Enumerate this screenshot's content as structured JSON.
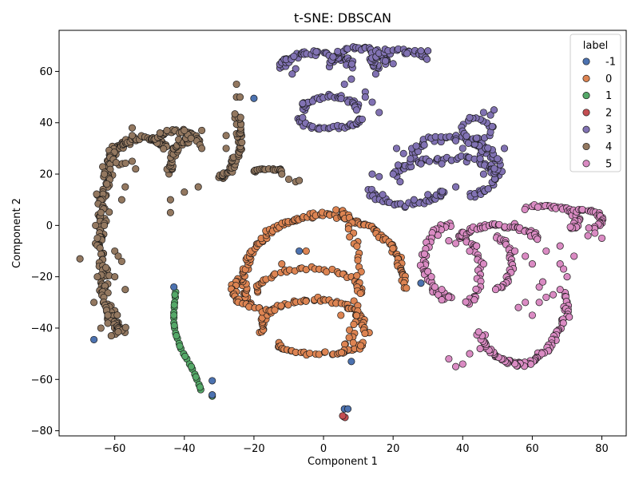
{
  "chart_data": {
    "type": "scatter",
    "title": "t-SNE: DBSCAN",
    "xlabel": "Component 1",
    "ylabel": "Component 2",
    "xlim": [
      -76,
      87
    ],
    "ylim": [
      -82,
      76
    ],
    "xticks": [
      -60,
      -40,
      -20,
      0,
      20,
      40,
      60,
      80
    ],
    "yticks": [
      -80,
      -60,
      -40,
      -20,
      0,
      20,
      40,
      60
    ],
    "grid": false,
    "legend": {
      "title": "label",
      "placement": "top-right"
    },
    "series": [
      {
        "name": "-1",
        "color": "#4c72b0",
        "points": [
          [
            -20,
            49.5
          ],
          [
            -66,
            -44.5
          ],
          [
            -43,
            -24
          ],
          [
            -32,
            -60.5
          ],
          [
            -32,
            -66
          ],
          [
            6,
            -71.5
          ],
          [
            7,
            -71.5
          ],
          [
            8,
            -53
          ],
          [
            -7,
            -10
          ],
          [
            28,
            -22.5
          ]
        ]
      },
      {
        "name": "0",
        "color": "#dd8452",
        "arcs": [
          {
            "cx": 0,
            "cy": -22,
            "rx": 23,
            "ry": 26,
            "from": 200,
            "to": -5,
            "n": 140,
            "jit": 1.5
          },
          {
            "cx": -4,
            "cy": -26,
            "rx": 15,
            "ry": 9,
            "from": 180,
            "to": 0,
            "n": 40,
            "jit": 1.2
          },
          {
            "cx": -3,
            "cy": -40,
            "rx": 15,
            "ry": 11,
            "from": 190,
            "to": -10,
            "n": 60,
            "jit": 1.5
          },
          {
            "cx": -1,
            "cy": -46,
            "rx": 12,
            "ry": 4,
            "from": 180,
            "to": 360,
            "n": 35,
            "jit": 1.2
          },
          {
            "cx": 4,
            "cy": -22,
            "rx": 6,
            "ry": 28,
            "from": 90,
            "to": -80,
            "n": 45,
            "jit": 1.5
          },
          {
            "cx": -14,
            "cy": -25,
            "rx": 12,
            "ry": 8,
            "from": 150,
            "to": 270,
            "n": 30,
            "jit": 1.3
          }
        ],
        "points": [
          [
            5,
            -35
          ],
          [
            -12,
            -15
          ],
          [
            -5,
            -10
          ]
        ]
      },
      {
        "name": "1",
        "color": "#55a868",
        "points": [
          [
            -42.5,
            -26
          ],
          [
            -42.6,
            -28
          ],
          [
            -42.8,
            -30
          ],
          [
            -42.9,
            -32
          ],
          [
            -43,
            -34
          ],
          [
            -43,
            -36
          ],
          [
            -43,
            -38
          ],
          [
            -42.8,
            -40
          ],
          [
            -42.5,
            -42
          ],
          [
            -42,
            -44
          ],
          [
            -41.5,
            -46
          ],
          [
            -41,
            -48
          ],
          [
            -40.2,
            -50
          ],
          [
            -39.3,
            -52
          ],
          [
            -38.5,
            -54
          ],
          [
            -37.7,
            -56
          ],
          [
            -37,
            -58
          ],
          [
            -36.4,
            -60
          ],
          [
            -35.8,
            -62
          ],
          [
            -35.3,
            -64
          ],
          [
            -42.7,
            -27
          ],
          [
            -42.9,
            -31
          ],
          [
            -43,
            -35
          ],
          [
            -42.9,
            -39
          ],
          [
            -42.3,
            -43
          ],
          [
            -41.3,
            -47
          ],
          [
            -39.8,
            -51
          ],
          [
            -38,
            -55
          ],
          [
            -36.7,
            -59
          ],
          [
            -35.5,
            -63
          ],
          [
            -32,
            -66.5
          ]
        ]
      },
      {
        "name": "2",
        "color": "#c44e52",
        "points": [
          [
            5.8,
            -74.5
          ],
          [
            6.2,
            -74.8
          ],
          [
            5.5,
            -74.2
          ]
        ]
      },
      {
        "name": "3",
        "color": "#8172b3",
        "arcs": [
          {
            "cx": -2,
            "cy": 62,
            "rx": 10,
            "ry": 5,
            "from": 180,
            "to": 0,
            "n": 60,
            "jit": 2.0
          },
          {
            "cx": 10,
            "cy": 63,
            "rx": 8,
            "ry": 6,
            "from": 180,
            "to": 0,
            "n": 40,
            "jit": 1.8
          },
          {
            "cx": 22,
            "cy": 64,
            "rx": 8,
            "ry": 4,
            "from": 220,
            "to": 20,
            "n": 40,
            "jit": 1.5
          },
          {
            "cx": 2,
            "cy": 45,
            "rx": 8,
            "ry": 5,
            "from": 180,
            "to": 0,
            "n": 40,
            "jit": 1.4
          },
          {
            "cx": 2,
            "cy": 42,
            "rx": 9,
            "ry": 4,
            "from": 180,
            "to": 360,
            "n": 35,
            "jit": 1.4
          },
          {
            "cx": 36,
            "cy": 28,
            "rx": 10,
            "ry": 6,
            "from": 180,
            "to": 0,
            "n": 40,
            "jit": 1.8
          },
          {
            "cx": 35,
            "cy": 20,
            "rx": 14,
            "ry": 6,
            "from": 180,
            "to": 0,
            "n": 55,
            "jit": 2.0
          },
          {
            "cx": 24,
            "cy": 14,
            "rx": 10,
            "ry": 6,
            "from": 180,
            "to": 360,
            "n": 40,
            "jit": 1.6
          },
          {
            "cx": 42,
            "cy": 22,
            "rx": 8,
            "ry": 10,
            "from": -90,
            "to": 90,
            "n": 40,
            "jit": 1.8
          },
          {
            "cx": 44,
            "cy": 38,
            "rx": 4,
            "ry": 4,
            "from": 0,
            "to": 360,
            "n": 20,
            "jit": 1.2
          }
        ],
        "points": [
          [
            -6,
            47.5
          ],
          [
            -6,
            42
          ],
          [
            -8,
            61
          ],
          [
            -9,
            59
          ],
          [
            20,
            63
          ],
          [
            30,
            68
          ],
          [
            28,
            68
          ],
          [
            24,
            67
          ],
          [
            15,
            59
          ],
          [
            8,
            57
          ],
          [
            6,
            55
          ],
          [
            12,
            52
          ],
          [
            14,
            48
          ],
          [
            12,
            50
          ],
          [
            16,
            44
          ],
          [
            20,
            20
          ],
          [
            22,
            17
          ],
          [
            26,
            10
          ],
          [
            30,
            12
          ],
          [
            34,
            24
          ],
          [
            38,
            33
          ],
          [
            40,
            30
          ],
          [
            44,
            34
          ],
          [
            48,
            43
          ],
          [
            46,
            44
          ],
          [
            49,
            45
          ],
          [
            42,
            42
          ],
          [
            14,
            20
          ],
          [
            17,
            12
          ],
          [
            16,
            19
          ],
          [
            45,
            26
          ],
          [
            46,
            20
          ],
          [
            38,
            15
          ],
          [
            50,
            26
          ],
          [
            52,
            30
          ],
          [
            28,
            24
          ],
          [
            25,
            26
          ],
          [
            23,
            28
          ],
          [
            21,
            30
          ]
        ]
      },
      {
        "name": "4",
        "color": "#937860",
        "arcs": [
          {
            "cx": -58,
            "cy": -5,
            "rx": 6,
            "ry": 36,
            "from": 90,
            "to": 270,
            "n": 180,
            "jit": 2.4
          },
          {
            "cx": -57,
            "cy": 28,
            "rx": 4,
            "ry": 4,
            "from": 90,
            "to": 270,
            "n": 15,
            "jit": 1.5
          },
          {
            "cx": -52,
            "cy": 30,
            "rx": 6,
            "ry": 4,
            "from": 180,
            "to": 0,
            "n": 40,
            "jit": 1.6
          },
          {
            "cx": -42,
            "cy": 32,
            "rx": 6,
            "ry": 5,
            "from": 180,
            "to": 0,
            "n": 35,
            "jit": 1.4
          },
          {
            "cx": -30,
            "cy": 37,
            "rx": 6,
            "ry": 18,
            "from": -90,
            "to": 20,
            "n": 55,
            "jit": 1.6
          },
          {
            "cx": -38,
            "cy": 20,
            "rx": 6,
            "ry": 14,
            "from": 180,
            "to": 90,
            "n": 40,
            "jit": 1.6
          },
          {
            "cx": -16,
            "cy": 21,
            "rx": 4,
            "ry": 1,
            "from": 180,
            "to": 0,
            "n": 18,
            "jit": 0.8
          }
        ],
        "points": [
          [
            -63,
            20
          ],
          [
            -65,
            -20
          ],
          [
            -66,
            -30
          ],
          [
            -64,
            -40
          ],
          [
            -62,
            -35
          ],
          [
            -61,
            -43
          ],
          [
            -55,
            25
          ],
          [
            -54,
            22
          ],
          [
            -55,
            38
          ],
          [
            -55,
            35
          ],
          [
            -47,
            36
          ],
          [
            -45,
            37
          ],
          [
            -40,
            37
          ],
          [
            -35,
            37
          ],
          [
            -25,
            50
          ],
          [
            -25,
            55
          ],
          [
            -24,
            50
          ],
          [
            -28,
            35
          ],
          [
            -28,
            30
          ],
          [
            -35,
            30
          ],
          [
            -44,
            10
          ],
          [
            -44,
            5
          ],
          [
            -36,
            15
          ],
          [
            -40,
            13
          ],
          [
            -12,
            20
          ],
          [
            -10,
            18
          ],
          [
            -8,
            17
          ],
          [
            -7,
            17.5
          ],
          [
            -70,
            -13
          ],
          [
            -60,
            -10
          ],
          [
            -59,
            -12
          ],
          [
            -58,
            -14
          ],
          [
            -60,
            -20
          ],
          [
            -57,
            -25
          ],
          [
            -58,
            10
          ],
          [
            -57,
            15
          ],
          [
            -64,
            5
          ],
          [
            -63,
            0
          ],
          [
            -65,
            -5
          ]
        ]
      },
      {
        "name": "5",
        "color": "#da8bc3",
        "arcs": [
          {
            "cx": 56,
            "cy": -26,
            "rx": 14,
            "ry": 28,
            "from": 0,
            "to": -145,
            "n": 100,
            "jit": 1.8
          },
          {
            "cx": 50,
            "cy": -8,
            "rx": 12,
            "ry": 8,
            "from": 160,
            "to": 20,
            "n": 50,
            "jit": 1.4
          },
          {
            "cx": 63,
            "cy": 2,
            "rx": 10,
            "ry": 6,
            "from": 120,
            "to": -40,
            "n": 40,
            "jit": 1.6
          },
          {
            "cx": 74,
            "cy": 2,
            "rx": 6,
            "ry": 4,
            "from": 110,
            "to": -60,
            "n": 30,
            "jit": 1.4
          },
          {
            "cx": 37,
            "cy": -14,
            "rx": 8,
            "ry": 14,
            "from": 90,
            "to": 270,
            "n": 45,
            "jit": 1.6
          },
          {
            "cx": 41,
            "cy": -18,
            "rx": 4,
            "ry": 12,
            "from": 90,
            "to": -90,
            "n": 30,
            "jit": 1.3
          },
          {
            "cx": 50,
            "cy": -15,
            "rx": 4,
            "ry": 10,
            "from": 90,
            "to": -90,
            "n": 30,
            "jit": 1.3
          }
        ],
        "points": [
          [
            30,
            -18
          ],
          [
            31,
            -20
          ],
          [
            32,
            -24
          ],
          [
            33,
            -27
          ],
          [
            34,
            -29
          ],
          [
            36,
            -52
          ],
          [
            38,
            -55
          ],
          [
            40,
            -54
          ],
          [
            42,
            -50
          ],
          [
            45,
            -48
          ],
          [
            60,
            -35
          ],
          [
            62,
            -30
          ],
          [
            64,
            -28
          ],
          [
            66,
            -27
          ],
          [
            68,
            -25
          ],
          [
            70,
            -20
          ],
          [
            72,
            -12
          ],
          [
            68,
            -8
          ],
          [
            64,
            -10
          ],
          [
            68,
            -15
          ],
          [
            69,
            -17
          ],
          [
            56,
            -32
          ],
          [
            58,
            -30
          ],
          [
            78,
            -3
          ],
          [
            80,
            -5
          ],
          [
            76,
            -4
          ],
          [
            42,
            -10
          ],
          [
            44,
            -8
          ],
          [
            46,
            -15
          ],
          [
            36,
            -6
          ],
          [
            38,
            -7
          ],
          [
            62,
            -24
          ],
          [
            63,
            -22
          ],
          [
            34,
            -25
          ],
          [
            60,
            -15
          ],
          [
            58,
            -12
          ],
          [
            55,
            -10
          ]
        ]
      }
    ]
  }
}
